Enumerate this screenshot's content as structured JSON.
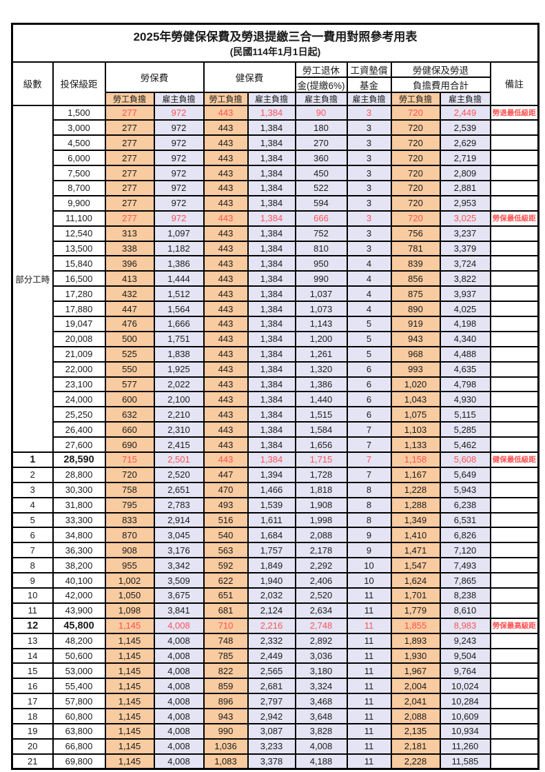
{
  "page": {
    "title": "2025年勞健保保費及勞退提繳三合一費用對照參考用表",
    "subtitle": "(民國114年1月1日起)"
  },
  "colors": {
    "employee_col_bg": "#F8CBA0",
    "employer_col_bg": "#E4E4F4",
    "highlight_red": "#FF5252",
    "border": "#000000"
  },
  "table": {
    "headers": {
      "level": "級數",
      "bracket": "投保級距",
      "labor_insurance": "勞保費",
      "health_insurance": "健保費",
      "pension_line1": "勞工退休",
      "pension_line2": "金(提繳6%)",
      "wage_fund_line1": "工資墊償",
      "wage_fund_line2": "基金",
      "total_line1": "勞健保及勞退",
      "total_line2": "負擔費用合計",
      "notes": "備註",
      "employee": "勞工負擔",
      "employer": "雇主負擔"
    },
    "part_time_label": "部分工時",
    "part_time_span": 23,
    "rows": [
      {
        "bracket": "1,500",
        "values": [
          "277",
          "972",
          "443",
          "1,384",
          "90",
          "3",
          "720",
          "2,449"
        ],
        "note": "勞退最低級距",
        "red": true
      },
      {
        "bracket": "3,000",
        "values": [
          "277",
          "972",
          "443",
          "1,384",
          "180",
          "3",
          "720",
          "2,539"
        ]
      },
      {
        "bracket": "4,500",
        "values": [
          "277",
          "972",
          "443",
          "1,384",
          "270",
          "3",
          "720",
          "2,629"
        ]
      },
      {
        "bracket": "6,000",
        "values": [
          "277",
          "972",
          "443",
          "1,384",
          "360",
          "3",
          "720",
          "2,719"
        ]
      },
      {
        "bracket": "7,500",
        "values": [
          "277",
          "972",
          "443",
          "1,384",
          "450",
          "3",
          "720",
          "2,809"
        ]
      },
      {
        "bracket": "8,700",
        "values": [
          "277",
          "972",
          "443",
          "1,384",
          "522",
          "3",
          "720",
          "2,881"
        ]
      },
      {
        "bracket": "9,900",
        "values": [
          "277",
          "972",
          "443",
          "1,384",
          "594",
          "3",
          "720",
          "2,953"
        ]
      },
      {
        "bracket": "11,100",
        "values": [
          "277",
          "972",
          "443",
          "1,384",
          "666",
          "3",
          "720",
          "3,025"
        ],
        "note": "勞保最低級距",
        "red": true
      },
      {
        "bracket": "12,540",
        "values": [
          "313",
          "1,097",
          "443",
          "1,384",
          "752",
          "3",
          "756",
          "3,237"
        ]
      },
      {
        "bracket": "13,500",
        "values": [
          "338",
          "1,182",
          "443",
          "1,384",
          "810",
          "3",
          "781",
          "3,379"
        ]
      },
      {
        "bracket": "15,840",
        "values": [
          "396",
          "1,386",
          "443",
          "1,384",
          "950",
          "4",
          "839",
          "3,724"
        ]
      },
      {
        "bracket": "16,500",
        "values": [
          "413",
          "1,444",
          "443",
          "1,384",
          "990",
          "4",
          "856",
          "3,822"
        ]
      },
      {
        "bracket": "17,280",
        "values": [
          "432",
          "1,512",
          "443",
          "1,384",
          "1,037",
          "4",
          "875",
          "3,937"
        ]
      },
      {
        "bracket": "17,880",
        "values": [
          "447",
          "1,564",
          "443",
          "1,384",
          "1,073",
          "4",
          "890",
          "4,025"
        ]
      },
      {
        "bracket": "19,047",
        "values": [
          "476",
          "1,666",
          "443",
          "1,384",
          "1,143",
          "5",
          "919",
          "4,198"
        ]
      },
      {
        "bracket": "20,008",
        "values": [
          "500",
          "1,751",
          "443",
          "1,384",
          "1,200",
          "5",
          "943",
          "4,340"
        ]
      },
      {
        "bracket": "21,009",
        "values": [
          "525",
          "1,838",
          "443",
          "1,384",
          "1,261",
          "5",
          "968",
          "4,488"
        ]
      },
      {
        "bracket": "22,000",
        "values": [
          "550",
          "1,925",
          "443",
          "1,384",
          "1,320",
          "6",
          "993",
          "4,635"
        ]
      },
      {
        "bracket": "23,100",
        "values": [
          "577",
          "2,022",
          "443",
          "1,384",
          "1,386",
          "6",
          "1,020",
          "4,798"
        ]
      },
      {
        "bracket": "24,000",
        "values": [
          "600",
          "2,100",
          "443",
          "1,384",
          "1,440",
          "6",
          "1,043",
          "4,930"
        ]
      },
      {
        "bracket": "25,250",
        "values": [
          "632",
          "2,210",
          "443",
          "1,384",
          "1,515",
          "6",
          "1,075",
          "5,115"
        ]
      },
      {
        "bracket": "26,400",
        "values": [
          "660",
          "2,310",
          "443",
          "1,384",
          "1,584",
          "7",
          "1,103",
          "5,285"
        ]
      },
      {
        "bracket": "27,600",
        "values": [
          "690",
          "2,415",
          "443",
          "1,384",
          "1,656",
          "7",
          "1,133",
          "5,462"
        ]
      },
      {
        "level": "1",
        "bracket": "28,590",
        "values": [
          "715",
          "2,501",
          "443",
          "1,384",
          "1,715",
          "7",
          "1,158",
          "5,608"
        ],
        "note": "健保最低級距",
        "red": true,
        "bold": true
      },
      {
        "level": "2",
        "bracket": "28,800",
        "values": [
          "720",
          "2,520",
          "447",
          "1,394",
          "1,728",
          "7",
          "1,167",
          "5,649"
        ]
      },
      {
        "level": "3",
        "bracket": "30,300",
        "values": [
          "758",
          "2,651",
          "470",
          "1,466",
          "1,818",
          "8",
          "1,228",
          "5,943"
        ]
      },
      {
        "level": "4",
        "bracket": "31,800",
        "values": [
          "795",
          "2,783",
          "493",
          "1,539",
          "1,908",
          "8",
          "1,288",
          "6,238"
        ]
      },
      {
        "level": "5",
        "bracket": "33,300",
        "values": [
          "833",
          "2,914",
          "516",
          "1,611",
          "1,998",
          "8",
          "1,349",
          "6,531"
        ]
      },
      {
        "level": "6",
        "bracket": "34,800",
        "values": [
          "870",
          "3,045",
          "540",
          "1,684",
          "2,088",
          "9",
          "1,410",
          "6,826"
        ]
      },
      {
        "level": "7",
        "bracket": "36,300",
        "values": [
          "908",
          "3,176",
          "563",
          "1,757",
          "2,178",
          "9",
          "1,471",
          "7,120"
        ]
      },
      {
        "level": "8",
        "bracket": "38,200",
        "values": [
          "955",
          "3,342",
          "592",
          "1,849",
          "2,292",
          "10",
          "1,547",
          "7,493"
        ]
      },
      {
        "level": "9",
        "bracket": "40,100",
        "values": [
          "1,002",
          "3,509",
          "622",
          "1,940",
          "2,406",
          "10",
          "1,624",
          "7,865"
        ]
      },
      {
        "level": "10",
        "bracket": "42,000",
        "values": [
          "1,050",
          "3,675",
          "651",
          "2,032",
          "2,520",
          "11",
          "1,701",
          "8,238"
        ]
      },
      {
        "level": "11",
        "bracket": "43,900",
        "values": [
          "1,098",
          "3,841",
          "681",
          "2,124",
          "2,634",
          "11",
          "1,779",
          "8,610"
        ]
      },
      {
        "level": "12",
        "bracket": "45,800",
        "values": [
          "1,145",
          "4,008",
          "710",
          "2,216",
          "2,748",
          "11",
          "1,855",
          "8,983"
        ],
        "note": "勞保最高級距",
        "red": true,
        "bold": true
      },
      {
        "level": "13",
        "bracket": "48,200",
        "values": [
          "1,145",
          "4,008",
          "748",
          "2,332",
          "2,892",
          "11",
          "1,893",
          "9,243"
        ]
      },
      {
        "level": "14",
        "bracket": "50,600",
        "values": [
          "1,145",
          "4,008",
          "785",
          "2,449",
          "3,036",
          "11",
          "1,930",
          "9,504"
        ]
      },
      {
        "level": "15",
        "bracket": "53,000",
        "values": [
          "1,145",
          "4,008",
          "822",
          "2,565",
          "3,180",
          "11",
          "1,967",
          "9,764"
        ]
      },
      {
        "level": "16",
        "bracket": "55,400",
        "values": [
          "1,145",
          "4,008",
          "859",
          "2,681",
          "3,324",
          "11",
          "2,004",
          "10,024"
        ]
      },
      {
        "level": "17",
        "bracket": "57,800",
        "values": [
          "1,145",
          "4,008",
          "896",
          "2,797",
          "3,468",
          "11",
          "2,041",
          "10,284"
        ]
      },
      {
        "level": "18",
        "bracket": "60,800",
        "values": [
          "1,145",
          "4,008",
          "943",
          "2,942",
          "3,648",
          "11",
          "2,088",
          "10,609"
        ]
      },
      {
        "level": "19",
        "bracket": "63,800",
        "values": [
          "1,145",
          "4,008",
          "990",
          "3,087",
          "3,828",
          "11",
          "2,135",
          "10,934"
        ]
      },
      {
        "level": "20",
        "bracket": "66,800",
        "values": [
          "1,145",
          "4,008",
          "1,036",
          "3,233",
          "4,008",
          "11",
          "2,181",
          "11,260"
        ]
      },
      {
        "level": "21",
        "bracket": "69,800",
        "values": [
          "1,145",
          "4,008",
          "1,083",
          "3,378",
          "4,188",
          "11",
          "2,228",
          "11,585"
        ]
      }
    ]
  }
}
